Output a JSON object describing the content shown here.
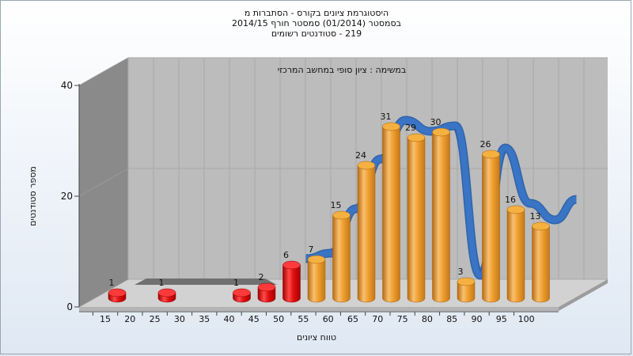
{
  "chart_data": {
    "type": "bar",
    "title_lines": [
      "היסטוגרמת ציונים בקורס - הסתברות מ",
      "בסמסטר  (01/2014)  סמסטר חורף 2014/15",
      "219 - סטודנטים רשומים"
    ],
    "subtitle": "במשימה : ציון סופי במחשב המרכזי",
    "xlabel": "טווח ציונים",
    "ylabel": "מספר סטודנטים",
    "categories": [
      "15",
      "20",
      "25",
      "30",
      "35",
      "40",
      "45",
      "50",
      "55",
      "60",
      "65",
      "70",
      "75",
      "80",
      "85",
      "90",
      "95",
      "100"
    ],
    "values": [
      1,
      0,
      1,
      0,
      0,
      1,
      2,
      6,
      7,
      15,
      24,
      31,
      29,
      30,
      3,
      26,
      16,
      13
    ],
    "highlight_below": 55,
    "y_ticks": [
      0,
      20,
      40
    ],
    "ylim": [
      0,
      40
    ],
    "grid": true,
    "trend_line": true,
    "colors": {
      "bar_fail": "#e01010",
      "bar_pass": "#f0a030",
      "trend": "#3a74c4",
      "wall": "#bcbcbc",
      "side_wall": "#8a8a8a"
    }
  }
}
